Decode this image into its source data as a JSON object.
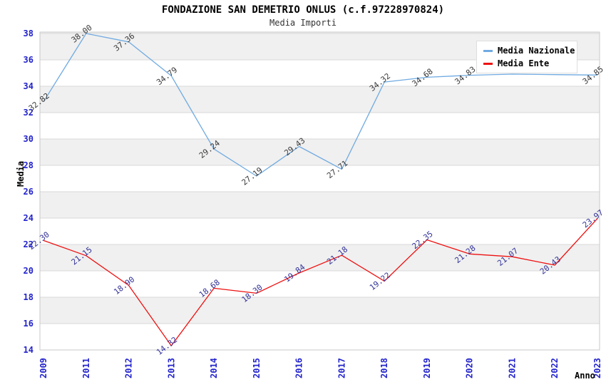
{
  "title": "FONDAZIONE SAN DEMETRIO ONLUS (c.f.97228970824)",
  "subtitle": "Media Importi",
  "legend": {
    "items": [
      {
        "label": "Media Nazionale",
        "color": "#6FAAE1"
      },
      {
        "label": "Media Ente",
        "color": "#EE1111"
      }
    ]
  },
  "chart_data": {
    "type": "line",
    "title": "FONDAZIONE SAN DEMETRIO ONLUS (c.f.97228970824)",
    "subtitle": "Media Importi",
    "xlabel": "Anno",
    "ylabel": "Media",
    "x": [
      "2009",
      "2011",
      "2012",
      "2013",
      "2014",
      "2015",
      "2016",
      "2017",
      "2018",
      "2019",
      "2020",
      "2021",
      "2022",
      "2023"
    ],
    "ylim": [
      14,
      38
    ],
    "yticks": [
      14,
      16,
      18,
      20,
      22,
      24,
      26,
      28,
      30,
      32,
      34,
      36,
      38
    ],
    "grid": true,
    "legend_position": "top-right",
    "band_colors": [
      "#ffffff",
      "#f0f0f0"
    ],
    "grid_color": "#d9d9d9",
    "border_color": "#c9c9c9",
    "axis_tick_label_color": "#2323CC",
    "series": [
      {
        "name": "Media Nazionale",
        "color": "#6FAAE1",
        "label_color": "#3A3A3A",
        "values": [
          32.82,
          38.0,
          37.36,
          34.79,
          29.24,
          27.19,
          29.43,
          27.71,
          34.32,
          34.68,
          34.83,
          34.92,
          34.88,
          34.85
        ],
        "point_labels": [
          "32.82",
          "38.00",
          "37.36",
          "34.79",
          "29.24",
          "27.19",
          "29.43",
          "27.71",
          "34.32",
          "34.68",
          "34.83",
          null,
          null,
          "34.85"
        ]
      },
      {
        "name": "Media Ente",
        "color": "#EE1111",
        "label_color": "#333399",
        "values": [
          22.3,
          21.15,
          18.9,
          14.32,
          18.68,
          18.3,
          19.84,
          21.18,
          19.22,
          22.35,
          21.28,
          21.07,
          20.43,
          23.97
        ],
        "point_labels": [
          "22.30",
          "21.15",
          "18.90",
          "14.32",
          "18.68",
          "18.30",
          "19.84",
          "21.18",
          "19.22",
          "22.35",
          "21.28",
          "21.07",
          "20.43",
          "23.97"
        ]
      }
    ]
  }
}
